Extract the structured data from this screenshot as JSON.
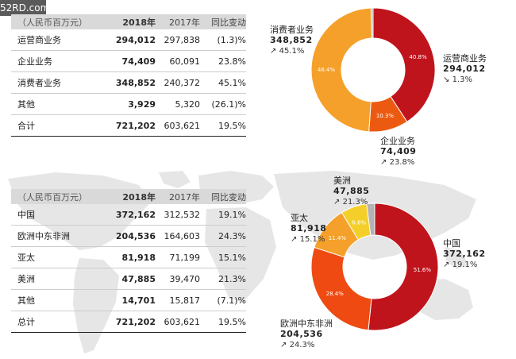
{
  "watermark": "52RD.com",
  "table1": {
    "headers": [
      "（人民币百万元）",
      "2018年",
      "2017年",
      "同比变动"
    ],
    "rows": [
      [
        "运营商业务",
        "294,012",
        "297,838",
        "(1.3)%"
      ],
      [
        "企业业务",
        "74,409",
        "60,091",
        "23.8%"
      ],
      [
        "消费者业务",
        "348,852",
        "240,372",
        "45.1%"
      ],
      [
        "其他",
        "3,929",
        "5,320",
        "(26.1)%"
      ],
      [
        "合计",
        "721,202",
        "603,621",
        "19.5%"
      ]
    ]
  },
  "table2": {
    "headers": [
      "（人民币百万元）",
      "2018年",
      "2017年",
      "同比变动"
    ],
    "rows": [
      [
        "中国",
        "372,162",
        "312,532",
        "19.1%"
      ],
      [
        "欧洲中东非洲",
        "204,536",
        "164,603",
        "24.3%"
      ],
      [
        "亚太",
        "81,918",
        "71,199",
        "15.1%"
      ],
      [
        "美洲",
        "47,885",
        "39,470",
        "21.3%"
      ],
      [
        "其他",
        "14,701",
        "15,817",
        "(7.1)%"
      ],
      [
        "总计",
        "721,202",
        "603,621",
        "19.5%"
      ]
    ]
  },
  "chart_data": [
    {
      "type": "pie",
      "donut": true,
      "slices": [
        {
          "label": "运营商业务",
          "value": 294012,
          "pct_label": "40.8%",
          "change": "1.3%",
          "direction": "down",
          "color": "#c0141c"
        },
        {
          "label": "企业业务",
          "value": 74409,
          "pct_label": "10.3%",
          "change": "23.8%",
          "direction": "up",
          "color": "#ec5a11"
        },
        {
          "label": "消费者业务",
          "value": 348852,
          "pct_label": "48.4%",
          "change": "45.1%",
          "direction": "up",
          "color": "#f5a02a"
        },
        {
          "label": "",
          "value": 3929,
          "pct_label": "",
          "change": "",
          "direction": "",
          "color": "#b3b3b3"
        }
      ]
    },
    {
      "type": "pie",
      "donut": true,
      "slices": [
        {
          "label": "中国",
          "value": 372162,
          "pct_label": "51.6%",
          "change": "19.1%",
          "direction": "up",
          "color": "#c0141c"
        },
        {
          "label": "欧洲中东非洲",
          "value": 204536,
          "pct_label": "28.4%",
          "change": "24.3%",
          "direction": "up",
          "color": "#ee4a12"
        },
        {
          "label": "亚太",
          "value": 81918,
          "pct_label": "11.4%",
          "change": "15.1%",
          "direction": "up",
          "color": "#f5a02a"
        },
        {
          "label": "美洲",
          "value": 47885,
          "pct_label": "6.6%",
          "change": "21.3%",
          "direction": "up",
          "color": "#f4cf2a"
        },
        {
          "label": "",
          "value": 14701,
          "pct_label": "",
          "change": "",
          "direction": "",
          "color": "#b3b3b3"
        }
      ]
    }
  ]
}
